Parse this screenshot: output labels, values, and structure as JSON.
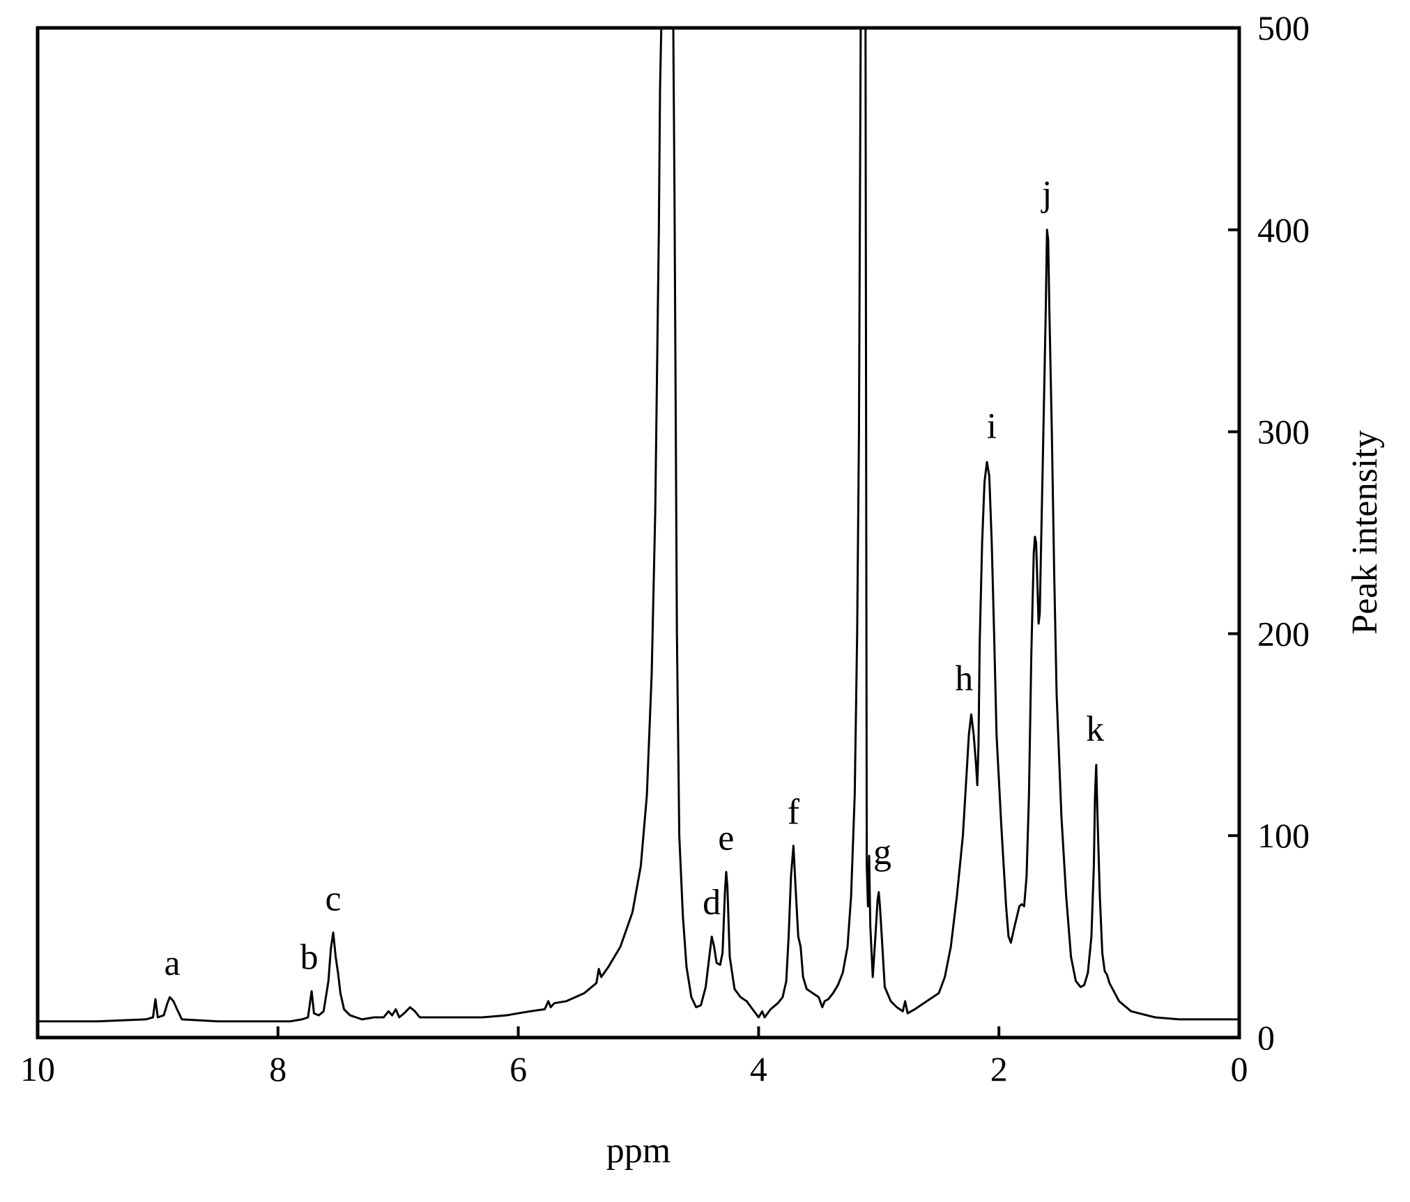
{
  "chart_data": {
    "type": "line",
    "title": "",
    "xlabel": "ppm",
    "ylabel": "Peak intensity",
    "xlim": [
      10,
      0
    ],
    "ylim": [
      0,
      500
    ],
    "x_reversed": true,
    "y_axis_side": "right",
    "grid": false,
    "legend": "none",
    "xticks": [
      10,
      8,
      6,
      4,
      2,
      0
    ],
    "xtick_labels": [
      "10",
      "8",
      "6",
      "4",
      "2",
      "0"
    ],
    "yticks": [
      0,
      100,
      200,
      300,
      400,
      500
    ],
    "ytick_labels": [
      "0",
      "100",
      "200",
      "300",
      "400",
      "500"
    ],
    "line_color": "#000000",
    "series": [
      {
        "points": [
          [
            10.0,
            8
          ],
          [
            9.5,
            8
          ],
          [
            9.1,
            9
          ],
          [
            9.04,
            10
          ],
          [
            9.02,
            19
          ],
          [
            9.0,
            10
          ],
          [
            8.95,
            11
          ],
          [
            8.92,
            17
          ],
          [
            8.9,
            20
          ],
          [
            8.87,
            18
          ],
          [
            8.84,
            14
          ],
          [
            8.8,
            9
          ],
          [
            8.5,
            8
          ],
          [
            8.2,
            8
          ],
          [
            8.0,
            8
          ],
          [
            7.9,
            8
          ],
          [
            7.8,
            9
          ],
          [
            7.75,
            10
          ],
          [
            7.72,
            23
          ],
          [
            7.7,
            12
          ],
          [
            7.66,
            11
          ],
          [
            7.62,
            13
          ],
          [
            7.58,
            28
          ],
          [
            7.56,
            44
          ],
          [
            7.54,
            52
          ],
          [
            7.52,
            40
          ],
          [
            7.5,
            32
          ],
          [
            7.48,
            22
          ],
          [
            7.45,
            14
          ],
          [
            7.4,
            11
          ],
          [
            7.3,
            9
          ],
          [
            7.2,
            10
          ],
          [
            7.12,
            10
          ],
          [
            7.08,
            13
          ],
          [
            7.05,
            11
          ],
          [
            7.02,
            14
          ],
          [
            6.99,
            10
          ],
          [
            6.95,
            12
          ],
          [
            6.9,
            15
          ],
          [
            6.86,
            13
          ],
          [
            6.82,
            10
          ],
          [
            6.6,
            10
          ],
          [
            6.3,
            10
          ],
          [
            6.1,
            11
          ],
          [
            6.0,
            12
          ],
          [
            5.9,
            13
          ],
          [
            5.78,
            14
          ],
          [
            5.75,
            18
          ],
          [
            5.73,
            15
          ],
          [
            5.7,
            17
          ],
          [
            5.6,
            18
          ],
          [
            5.45,
            22
          ],
          [
            5.35,
            27
          ],
          [
            5.33,
            34
          ],
          [
            5.31,
            30
          ],
          [
            5.25,
            35
          ],
          [
            5.15,
            45
          ],
          [
            5.05,
            62
          ],
          [
            4.98,
            85
          ],
          [
            4.93,
            120
          ],
          [
            4.89,
            180
          ],
          [
            4.86,
            260
          ],
          [
            4.83,
            400
          ],
          [
            4.82,
            470
          ],
          [
            4.81,
            500
          ],
          [
            4.79,
            500
          ],
          [
            4.78,
            500
          ],
          [
            4.76,
            500
          ],
          [
            4.74,
            500
          ],
          [
            4.73,
            500
          ],
          [
            4.72,
            500
          ],
          [
            4.71,
            500
          ],
          [
            4.7,
            420
          ],
          [
            4.68,
            200
          ],
          [
            4.66,
            100
          ],
          [
            4.63,
            60
          ],
          [
            4.6,
            35
          ],
          [
            4.56,
            20
          ],
          [
            4.52,
            15
          ],
          [
            4.48,
            16
          ],
          [
            4.44,
            25
          ],
          [
            4.41,
            40
          ],
          [
            4.39,
            50
          ],
          [
            4.37,
            45
          ],
          [
            4.35,
            37
          ],
          [
            4.32,
            36
          ],
          [
            4.3,
            42
          ],
          [
            4.28,
            72
          ],
          [
            4.27,
            82
          ],
          [
            4.26,
            75
          ],
          [
            4.24,
            40
          ],
          [
            4.2,
            24
          ],
          [
            4.15,
            20
          ],
          [
            4.1,
            18
          ],
          [
            4.05,
            14
          ],
          [
            4.0,
            10
          ],
          [
            3.97,
            13
          ],
          [
            3.95,
            10
          ],
          [
            3.9,
            14
          ],
          [
            3.84,
            17
          ],
          [
            3.8,
            20
          ],
          [
            3.77,
            28
          ],
          [
            3.75,
            50
          ],
          [
            3.73,
            80
          ],
          [
            3.71,
            95
          ],
          [
            3.69,
            72
          ],
          [
            3.67,
            50
          ],
          [
            3.65,
            45
          ],
          [
            3.63,
            30
          ],
          [
            3.6,
            24
          ],
          [
            3.55,
            22
          ],
          [
            3.5,
            20
          ],
          [
            3.47,
            15
          ],
          [
            3.45,
            18
          ],
          [
            3.42,
            19
          ],
          [
            3.38,
            22
          ],
          [
            3.34,
            26
          ],
          [
            3.3,
            32
          ],
          [
            3.26,
            45
          ],
          [
            3.23,
            70
          ],
          [
            3.2,
            120
          ],
          [
            3.18,
            200
          ],
          [
            3.165,
            300
          ],
          [
            3.15,
            500
          ],
          [
            3.14,
            500
          ],
          [
            3.13,
            500
          ],
          [
            3.12,
            500
          ],
          [
            3.11,
            500
          ],
          [
            3.1,
            85
          ],
          [
            3.09,
            65
          ],
          [
            3.08,
            90
          ],
          [
            3.07,
            55
          ],
          [
            3.05,
            30
          ],
          [
            3.03,
            48
          ],
          [
            3.01,
            68
          ],
          [
            3.0,
            72
          ],
          [
            2.99,
            65
          ],
          [
            2.97,
            45
          ],
          [
            2.95,
            25
          ],
          [
            2.9,
            18
          ],
          [
            2.85,
            15
          ],
          [
            2.8,
            13
          ],
          [
            2.78,
            18
          ],
          [
            2.76,
            12
          ],
          [
            2.7,
            14
          ],
          [
            2.6,
            18
          ],
          [
            2.5,
            22
          ],
          [
            2.45,
            30
          ],
          [
            2.4,
            45
          ],
          [
            2.35,
            70
          ],
          [
            2.3,
            100
          ],
          [
            2.27,
            130
          ],
          [
            2.25,
            150
          ],
          [
            2.23,
            160
          ],
          [
            2.21,
            150
          ],
          [
            2.19,
            135
          ],
          [
            2.18,
            125
          ],
          [
            2.17,
            145
          ],
          [
            2.16,
            195
          ],
          [
            2.14,
            245
          ],
          [
            2.12,
            275
          ],
          [
            2.1,
            285
          ],
          [
            2.08,
            278
          ],
          [
            2.06,
            245
          ],
          [
            2.04,
            200
          ],
          [
            2.02,
            150
          ],
          [
            1.98,
            105
          ],
          [
            1.94,
            65
          ],
          [
            1.92,
            50
          ],
          [
            1.9,
            47
          ],
          [
            1.87,
            55
          ],
          [
            1.85,
            60
          ],
          [
            1.83,
            65
          ],
          [
            1.81,
            66
          ],
          [
            1.79,
            65
          ],
          [
            1.77,
            80
          ],
          [
            1.75,
            120
          ],
          [
            1.73,
            190
          ],
          [
            1.71,
            240
          ],
          [
            1.7,
            248
          ],
          [
            1.69,
            245
          ],
          [
            1.68,
            225
          ],
          [
            1.67,
            205
          ],
          [
            1.66,
            210
          ],
          [
            1.65,
            240
          ],
          [
            1.63,
            300
          ],
          [
            1.61,
            360
          ],
          [
            1.6,
            400
          ],
          [
            1.59,
            395
          ],
          [
            1.58,
            360
          ],
          [
            1.56,
            300
          ],
          [
            1.54,
            230
          ],
          [
            1.52,
            170
          ],
          [
            1.48,
            110
          ],
          [
            1.44,
            70
          ],
          [
            1.4,
            40
          ],
          [
            1.36,
            28
          ],
          [
            1.32,
            25
          ],
          [
            1.29,
            26
          ],
          [
            1.26,
            32
          ],
          [
            1.23,
            50
          ],
          [
            1.21,
            85
          ],
          [
            1.2,
            120
          ],
          [
            1.19,
            135
          ],
          [
            1.18,
            110
          ],
          [
            1.16,
            70
          ],
          [
            1.14,
            42
          ],
          [
            1.12,
            33
          ],
          [
            1.1,
            31
          ],
          [
            1.08,
            27
          ],
          [
            1.0,
            18
          ],
          [
            0.9,
            13
          ],
          [
            0.7,
            10
          ],
          [
            0.5,
            9
          ],
          [
            0.3,
            9
          ],
          [
            0.0,
            9
          ]
        ]
      }
    ],
    "annotations": [
      {
        "text": "a",
        "x": 8.88,
        "y": 31
      },
      {
        "text": "b",
        "x": 7.74,
        "y": 34
      },
      {
        "text": "c",
        "x": 7.54,
        "y": 63
      },
      {
        "text": "d",
        "x": 4.39,
        "y": 61
      },
      {
        "text": "e",
        "x": 4.27,
        "y": 93
      },
      {
        "text": "f",
        "x": 3.71,
        "y": 106
      },
      {
        "text": "g",
        "x": 2.97,
        "y": 86
      },
      {
        "text": "h",
        "x": 2.29,
        "y": 172
      },
      {
        "text": "i",
        "x": 2.06,
        "y": 297
      },
      {
        "text": "j",
        "x": 1.6,
        "y": 412
      },
      {
        "text": "k",
        "x": 1.2,
        "y": 147
      }
    ]
  }
}
